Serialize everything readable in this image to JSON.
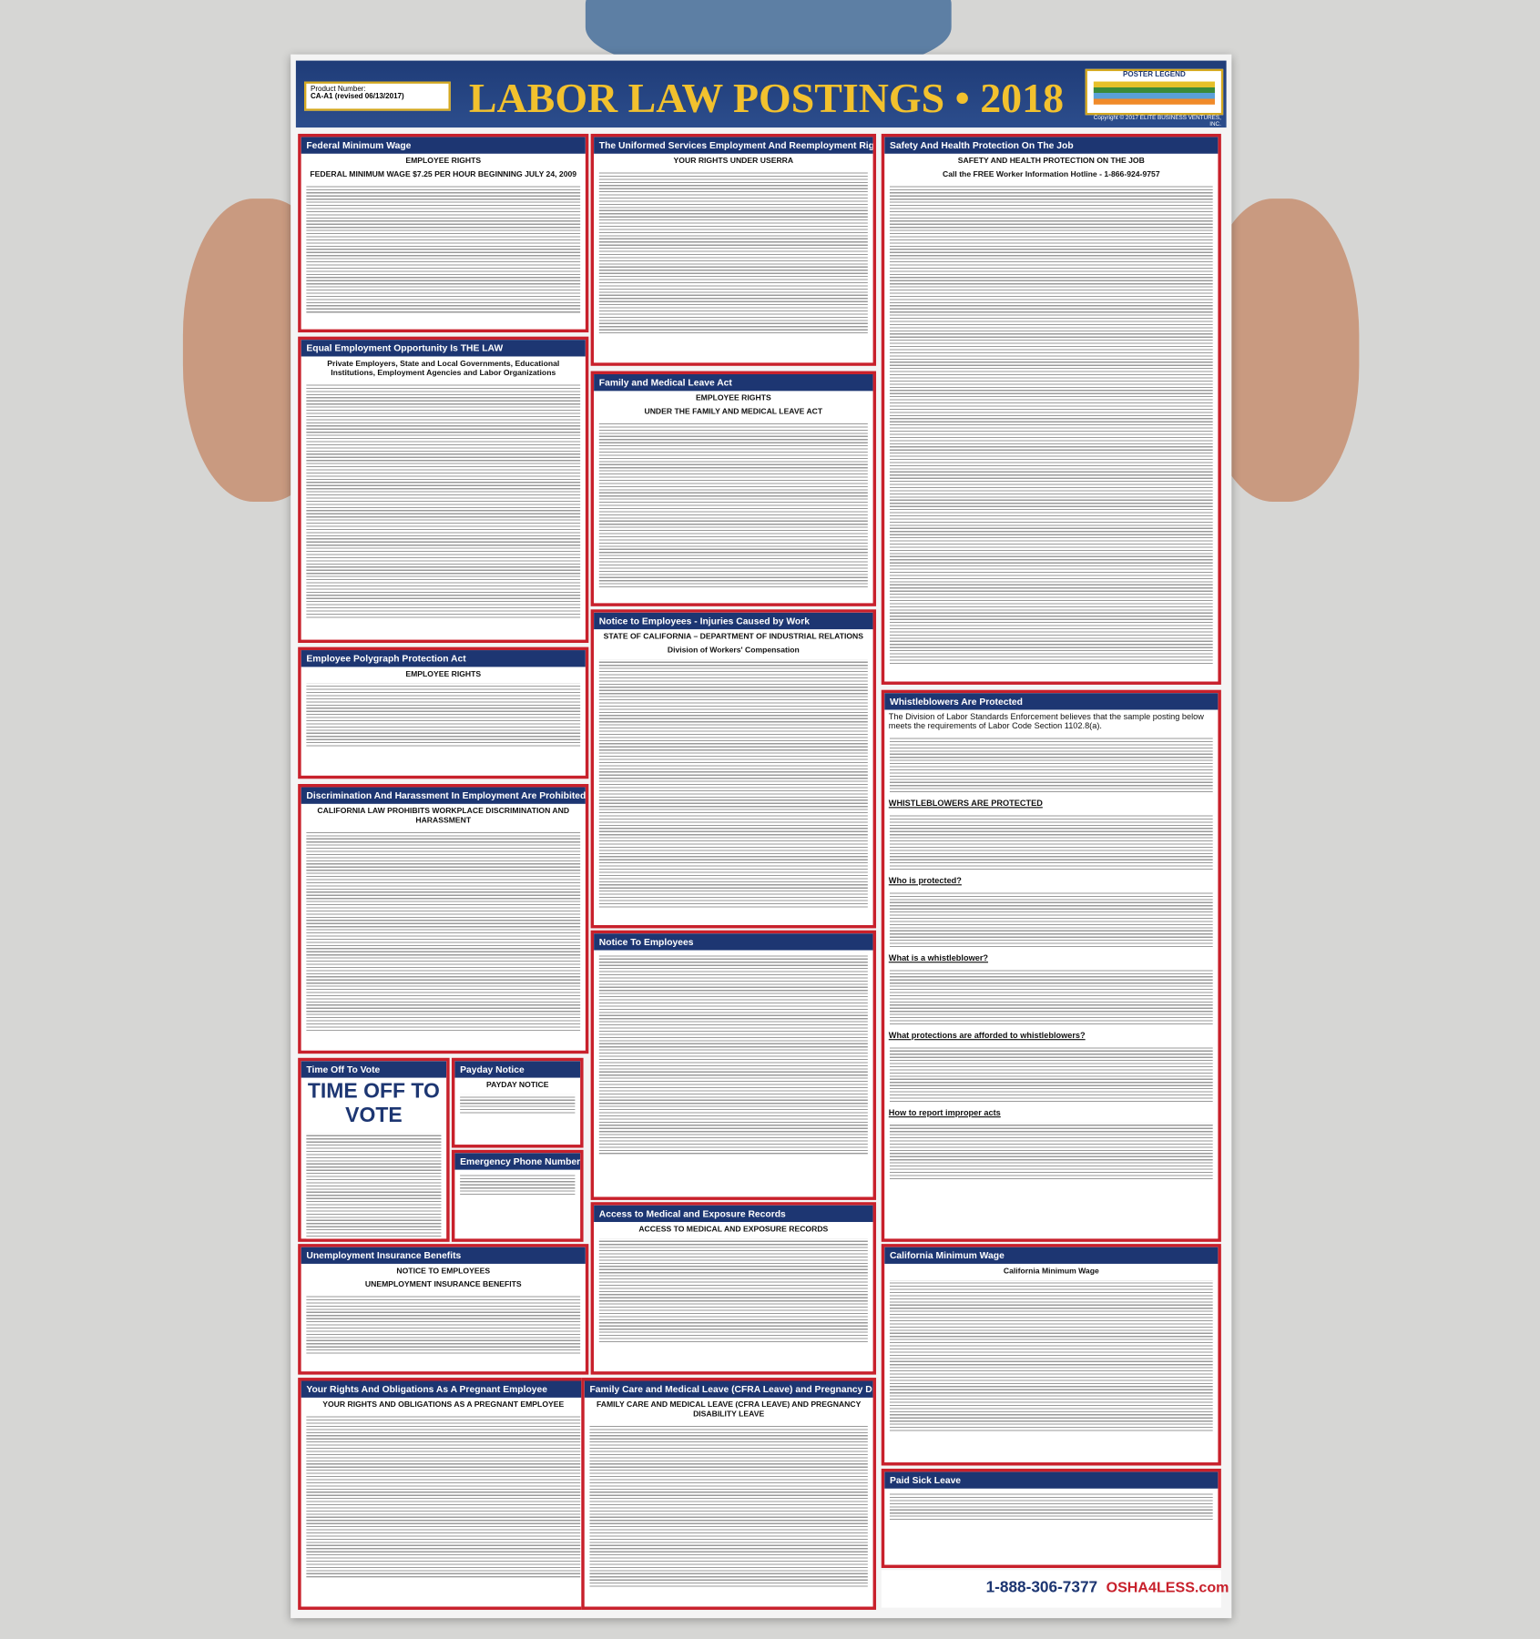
{
  "header": {
    "product_label": "Product Number:",
    "product_number": "CA-A1 (revised 06/13/2017)",
    "title": "LABOR LAW POSTINGS • 2018",
    "legend_title": "POSTER LEGEND",
    "copyright": "Copyright © 2017 ELITE BUSINESS VENTURES, INC."
  },
  "sections": [
    {
      "title": "Federal Minimum Wage",
      "texts": [
        "EMPLOYEE RIGHTS",
        "FEDERAL MINIMUM WAGE $7.25 PER HOUR BEGINNING JULY 24, 2009"
      ]
    },
    {
      "title": "Equal Employment Opportunity Is THE LAW",
      "texts": [
        "Private Employers, State and Local Governments, Educational Institutions, Employment Agencies and Labor Organizations"
      ]
    },
    {
      "title": "Employee Polygraph Protection Act",
      "texts": [
        "EMPLOYEE RIGHTS"
      ]
    },
    {
      "title": "Discrimination And Harassment In Employment Are Prohibited By Law",
      "texts": [
        "CALIFORNIA LAW PROHIBITS WORKPLACE DISCRIMINATION AND HARASSMENT"
      ]
    },
    {
      "title": "Time Off To Vote",
      "texts": [
        "TIME OFF TO VOTE"
      ]
    },
    {
      "title": "Payday Notice",
      "texts": [
        "PAYDAY NOTICE"
      ]
    },
    {
      "title": "Emergency Phone Numbers",
      "texts": []
    },
    {
      "title": "Unemployment Insurance Benefits",
      "texts": [
        "NOTICE TO EMPLOYEES",
        "UNEMPLOYMENT INSURANCE BENEFITS"
      ]
    },
    {
      "title": "Your Rights And Obligations As A Pregnant Employee",
      "texts": [
        "YOUR RIGHTS AND OBLIGATIONS AS A PREGNANT EMPLOYEE"
      ]
    },
    {
      "title": "The Uniformed Services Employment And Reemployment Rights Act",
      "texts": [
        "YOUR RIGHTS UNDER USERRA"
      ]
    },
    {
      "title": "Family and Medical Leave Act",
      "texts": [
        "EMPLOYEE RIGHTS",
        "UNDER THE FAMILY AND MEDICAL LEAVE ACT"
      ]
    },
    {
      "title": "Notice to Employees - Injuries Caused by Work",
      "texts": [
        "STATE OF CALIFORNIA – DEPARTMENT OF INDUSTRIAL RELATIONS",
        "Division of Workers' Compensation"
      ]
    },
    {
      "title": "Notice To Employees",
      "texts": []
    },
    {
      "title": "Access to Medical and Exposure Records",
      "texts": [
        "ACCESS TO MEDICAL AND EXPOSURE RECORDS"
      ]
    },
    {
      "title": "Family Care and Medical Leave (CFRA Leave) and Pregnancy Disability Leave",
      "texts": [
        "FAMILY CARE AND MEDICAL LEAVE (CFRA LEAVE) AND PREGNANCY DISABILITY LEAVE"
      ]
    },
    {
      "title": "Safety And Health Protection On The Job",
      "texts": [
        "SAFETY AND HEALTH PROTECTION ON THE JOB",
        "Call the FREE Worker Information Hotline - 1-866-924-9757"
      ]
    },
    {
      "title": "Whistleblowers Are Protected",
      "texts": [
        "The Division of Labor Standards Enforcement believes that the sample posting below meets the requirements of Labor Code Section 1102.8(a).",
        "WHISTLEBLOWERS ARE PROTECTED",
        "Who is protected?",
        "What is a whistleblower?",
        "What protections are afforded to whistleblowers?",
        "How to report improper acts"
      ]
    },
    {
      "title": "California Minimum Wage",
      "texts": [
        "California Minimum Wage"
      ]
    },
    {
      "title": "Paid Sick Leave",
      "texts": []
    }
  ],
  "footer": {
    "phone": "1-888-306-7377",
    "site": "OSHA4LESS.com"
  }
}
